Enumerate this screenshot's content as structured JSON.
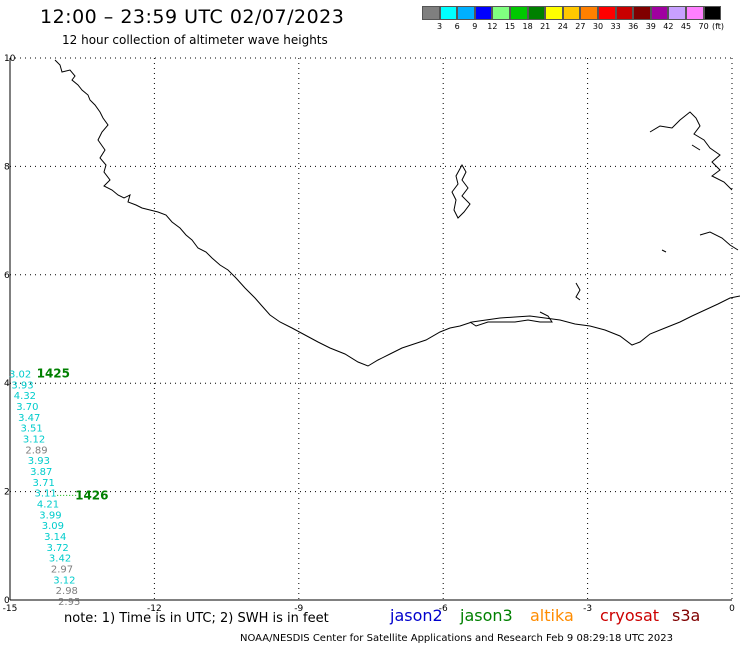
{
  "header": {
    "title": "12:00 – 23:59 UTC 02/07/2023",
    "subtitle": "12 hour collection of altimeter wave heights"
  },
  "colorbar": {
    "labels": [
      "3",
      "6",
      "9",
      "12",
      "15",
      "18",
      "21",
      "24",
      "27",
      "30",
      "33",
      "36",
      "39",
      "42",
      "45",
      "70"
    ],
    "unit": "(ft)",
    "colors": [
      "#7f7f7f",
      "#00ffff",
      "#00b0ff",
      "#0000ff",
      "#80ff80",
      "#00c800",
      "#008000",
      "#ffff00",
      "#ffc800",
      "#ff8000",
      "#ff0000",
      "#c80000",
      "#800000",
      "#a000a0",
      "#c8a0ff",
      "#ff80ff",
      "#000000"
    ]
  },
  "footer": {
    "note": "note:  1) Time is in UTC;  2) SWH is in feet",
    "credit": "NOAA/NESDIS Center for Satellite Applications and Research     Feb  9 08:29:18 UTC 2023",
    "satellites": [
      {
        "name": "jason2",
        "color": "#0000cc"
      },
      {
        "name": "jason3",
        "color": "#008000"
      },
      {
        "name": "altika",
        "color": "#ff8c00"
      },
      {
        "name": "cryosat",
        "color": "#cc0000"
      },
      {
        "name": "s3a",
        "color": "#800000"
      }
    ]
  },
  "chart_data": {
    "type": "scatter",
    "xlim": [
      -15,
      0
    ],
    "ylim": [
      0,
      10
    ],
    "x_ticks": [
      -15,
      -12,
      -9,
      -6,
      -3,
      0
    ],
    "y_ticks": [
      0,
      2,
      4,
      6,
      8,
      10
    ],
    "grid": true,
    "time_labels": [
      {
        "text": "1425",
        "x": -14.1,
        "y": 4.18,
        "color": "#008000"
      },
      {
        "text": "1426",
        "x": -13.3,
        "y": 1.93,
        "color": "#008000"
      }
    ],
    "points": [
      {
        "x": -14.79,
        "y": 4.18,
        "swh": "3.02",
        "color": "#00cccc"
      },
      {
        "x": -14.74,
        "y": 3.98,
        "swh": "3.93",
        "color": "#00cccc"
      },
      {
        "x": -14.69,
        "y": 3.78,
        "swh": "4.32",
        "color": "#00cccc"
      },
      {
        "x": -14.64,
        "y": 3.58,
        "swh": "3.70",
        "color": "#00cccc"
      },
      {
        "x": -14.6,
        "y": 3.38,
        "swh": "3.47",
        "color": "#00cccc"
      },
      {
        "x": -14.55,
        "y": 3.18,
        "swh": "3.51",
        "color": "#00cccc"
      },
      {
        "x": -14.5,
        "y": 2.98,
        "swh": "3.12",
        "color": "#00cccc"
      },
      {
        "x": -14.45,
        "y": 2.78,
        "swh": "2.89",
        "color": "#7f7f7f"
      },
      {
        "x": -14.4,
        "y": 2.58,
        "swh": "3.93",
        "color": "#00cccc"
      },
      {
        "x": -14.35,
        "y": 2.38,
        "swh": "3.87",
        "color": "#00cccc"
      },
      {
        "x": -14.3,
        "y": 2.18,
        "swh": "3.71",
        "color": "#00cccc"
      },
      {
        "x": -14.26,
        "y": 1.98,
        "swh": "3.11",
        "color": "#00cccc"
      },
      {
        "x": -14.21,
        "y": 1.78,
        "swh": "4.21",
        "color": "#00cccc"
      },
      {
        "x": -14.16,
        "y": 1.58,
        "swh": "3.99",
        "color": "#00cccc"
      },
      {
        "x": -14.11,
        "y": 1.38,
        "swh": "3.09",
        "color": "#00cccc"
      },
      {
        "x": -14.06,
        "y": 1.18,
        "swh": "3.14",
        "color": "#00cccc"
      },
      {
        "x": -14.01,
        "y": 0.98,
        "swh": "3.72",
        "color": "#00cccc"
      },
      {
        "x": -13.96,
        "y": 0.78,
        "swh": "3.42",
        "color": "#00cccc"
      },
      {
        "x": -13.92,
        "y": 0.58,
        "swh": "2.97",
        "color": "#7f7f7f"
      },
      {
        "x": -13.87,
        "y": 0.38,
        "swh": "3.12",
        "color": "#00cccc"
      },
      {
        "x": -13.82,
        "y": 0.18,
        "swh": "2.98",
        "color": "#7f7f7f"
      },
      {
        "x": -13.77,
        "y": -0.02,
        "swh": "2.95",
        "color": "#7f7f7f"
      }
    ]
  }
}
